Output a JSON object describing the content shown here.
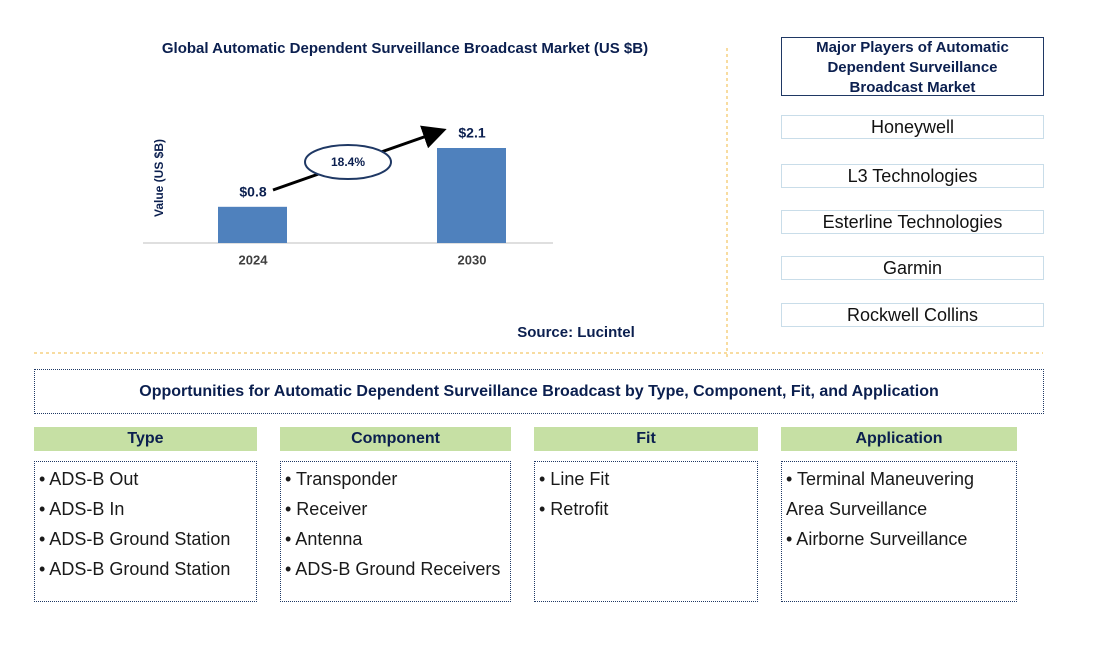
{
  "chart_data": {
    "type": "bar",
    "title": "Global Automatic Dependent Surveillance Broadcast Market (US $B)",
    "ylabel": "Value (US $B)",
    "categories": [
      "2024",
      "2030"
    ],
    "values": [
      0.8,
      2.1
    ],
    "value_labels": [
      "$0.8",
      "$2.1"
    ],
    "color": "#4f81bd",
    "annotation": "18.4%",
    "source": "Source: Lucintel"
  },
  "players": {
    "title": "Major Players of Automatic Dependent Surveillance Broadcast Market",
    "items": [
      "Honeywell",
      "L3 Technologies",
      "Esterline Technologies",
      "Garmin",
      "Rockwell Collins"
    ]
  },
  "opportunities": {
    "title": "Opportunities for Automatic Dependent Surveillance Broadcast by Type, Component, Fit, and Application",
    "columns": [
      {
        "header": "Type",
        "items": [
          "• ADS-B Out",
          "• ADS-B In",
          "• ADS-B Ground Station",
          "• ADS-B Ground Station"
        ]
      },
      {
        "header": "Component",
        "items": [
          "• Transponder",
          "• Receiver",
          "• Antenna",
          "• ADS-B Ground Receivers"
        ]
      },
      {
        "header": "Fit",
        "items": [
          "• Line Fit",
          "• Retrofit"
        ]
      },
      {
        "header": "Application",
        "items": [
          "• Terminal Maneuvering Area Surveillance",
          "• Airborne Surveillance"
        ]
      }
    ]
  }
}
